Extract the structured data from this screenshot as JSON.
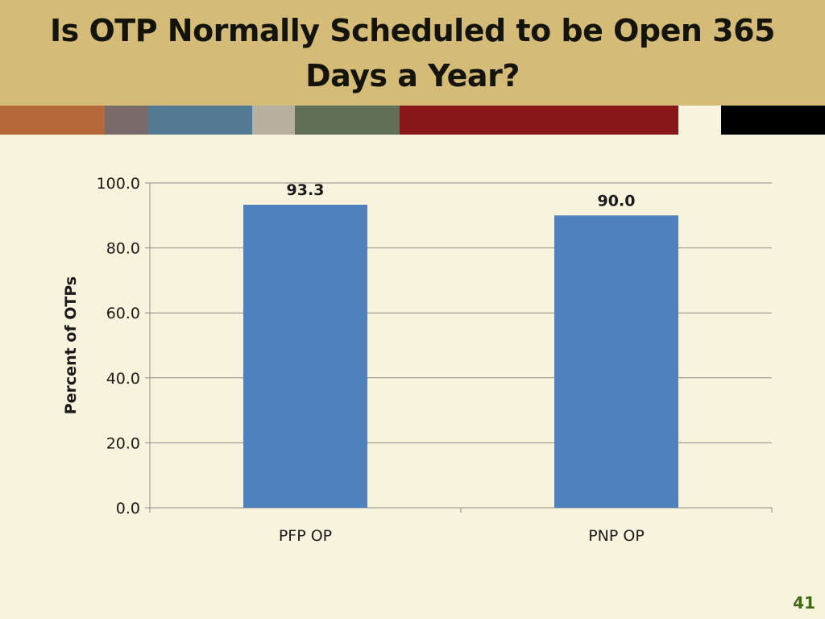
{
  "slide": {
    "title": "Is OTP Normally Scheduled to be Open 365 Days a Year?",
    "page_number": "41",
    "colors": {
      "background": "#f7f3dc",
      "title_band": "#d4bc78",
      "bar": "#4f81bd",
      "page_number": "#3e6b14"
    },
    "stripe_colors": [
      "#b5693a",
      "#7a6a6a",
      "#547a93",
      "#b8b09e",
      "#5f7057",
      "#891719",
      "#f7f3dc",
      "#000000"
    ]
  },
  "chart_data": {
    "type": "bar",
    "title": "",
    "xlabel": "",
    "ylabel": "Percent of OTPs",
    "categories": [
      "PFP OP",
      "PNP OP"
    ],
    "values": [
      93.3,
      90.0
    ],
    "data_labels": [
      "93.3",
      "90.0"
    ],
    "ylim": [
      0,
      100
    ],
    "yticks": [
      0,
      20,
      40,
      60,
      80,
      100
    ],
    "ytick_labels": [
      "0.0",
      "20.0",
      "40.0",
      "60.0",
      "80.0",
      "100.0"
    ],
    "grid": true,
    "legend": "none"
  }
}
